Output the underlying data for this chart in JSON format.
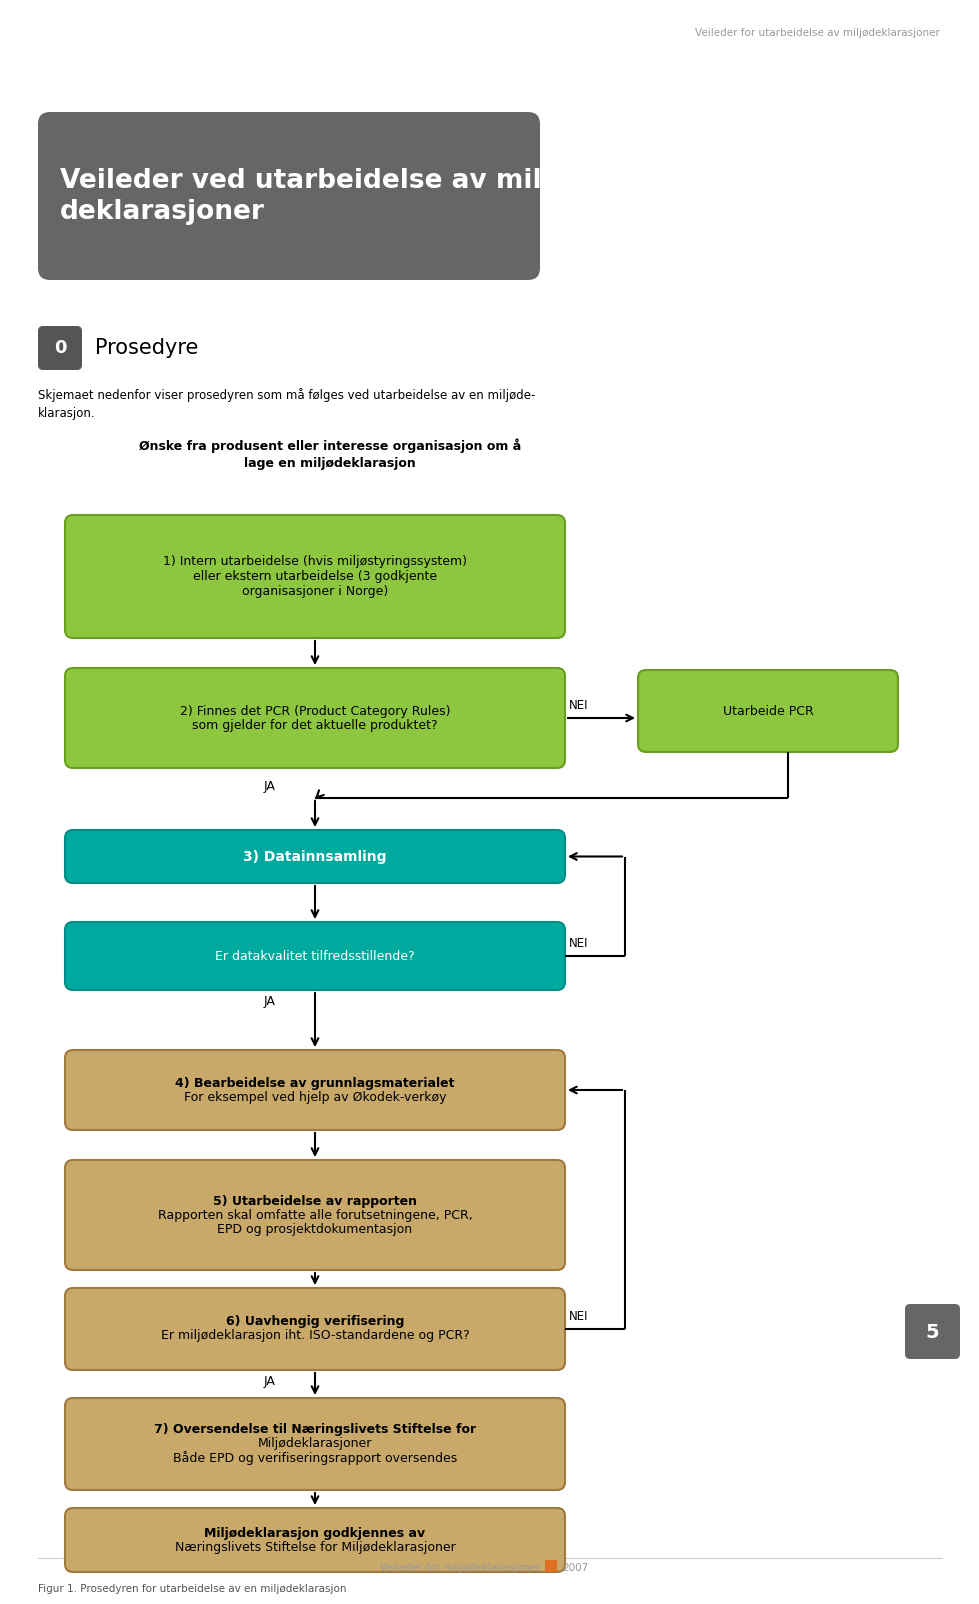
{
  "page_header": "Veileder for utarbeidelse av miljødeklarasjoner",
  "title_box_text": "Veileder ved utarbeidelse av miljø-\ndeklarasjoner",
  "title_box_color": "#666666",
  "section_title": "Prosedyre",
  "section_body": "Skjemaet nedenfor viser prosedyren som må følges ved utarbeidelse av en miljøde-\nklarasjon.",
  "flow_title": "Ønske fra produsent eller interesse organisasjon om å\nlage en miljødeklarasjon",
  "box1_text": "1) Intern utarbeidelse (hvis miljøstyringssystem)\neller ekstern utarbeidelse (3 godkjente\norganisasjoner i Norge)",
  "box2_text": "2) Finnes det PCR (Product Category Rules)\nsom gjelder for det aktuelle produktet?",
  "box_pcr_text": "Utarbeide PCR",
  "box3_text": "3) Datainnsamling",
  "box4_text": "Er datakvalitet tilfredsstillende?",
  "box5_text": "4) Bearbeidelse av grunnlagsmaterialet\nFor eksempel ved hjelp av Økodek-verkøy",
  "box6_text": "5) Utarbeidelse av rapporten\nRapporten skal omfatte alle forutsetningene, PCR,\nEPD og prosjektdokumentasjon",
  "box7_text": "6) Uavhengig verifisering\nEr miljødeklarasjon iht. ISO-standardene og PCR?",
  "box8_text": "7) Oversendelse til Næringslivets Stiftelse for\nMiljødeklarasjoner\nBåde EPD og verifiseringsrapport oversendes",
  "box9_text": "Miljødeklarasjon godkjennes av\nNæringslivets Stiftelse for Miljødeklarasjoner",
  "green_color": "#8DC63F",
  "green_border": "#6B9E1F",
  "teal_color": "#00A99D",
  "teal_border": "#008C87",
  "tan_color": "#C8A96A",
  "tan_border": "#A07840",
  "page_num": "5",
  "page_num_color": "#666666",
  "footer_text": "Veileder for miljødeklarasjoner",
  "footer_square_color": "#E07020",
  "footer_year": "2007",
  "figure_caption": "Figur 1. Prosedyren for utarbeidelse av en miljødeklarasjon"
}
